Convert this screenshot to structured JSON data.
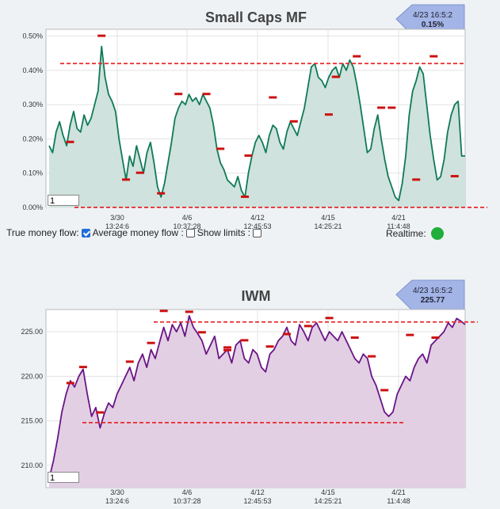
{
  "chart_data": [
    {
      "type": "line",
      "title": "Small Caps MF",
      "badge": {
        "time": "4/23 16:5:2",
        "value": "0.15%"
      },
      "y_ticks": [
        "0.00%",
        "0.10%",
        "0.20%",
        "0.30%",
        "0.40%",
        "0.50%"
      ],
      "ylim": [
        0,
        0.52
      ],
      "x_ticks": [
        {
          "date": "3/30",
          "time": "13:24:6"
        },
        {
          "date": "4/6",
          "time": "10:37:28"
        },
        {
          "date": "4/12",
          "time": "12:45:53"
        },
        {
          "date": "4/15",
          "time": "14:25:21"
        },
        {
          "date": "4/21",
          "time": "11:4:48"
        }
      ],
      "limits": [
        0.42,
        0.0
      ],
      "zoom_value": "1",
      "colors": {
        "line": "#0f7a57",
        "fill": "#cfe2dd",
        "limit": "#e8282a",
        "marker": "#cc1111"
      },
      "values": [
        0.18,
        0.16,
        0.22,
        0.25,
        0.21,
        0.18,
        0.24,
        0.28,
        0.23,
        0.22,
        0.27,
        0.24,
        0.26,
        0.3,
        0.34,
        0.47,
        0.38,
        0.33,
        0.31,
        0.28,
        0.2,
        0.14,
        0.08,
        0.15,
        0.12,
        0.18,
        0.14,
        0.1,
        0.16,
        0.19,
        0.13,
        0.06,
        0.03,
        0.07,
        0.13,
        0.19,
        0.26,
        0.29,
        0.31,
        0.3,
        0.33,
        0.31,
        0.32,
        0.3,
        0.33,
        0.31,
        0.29,
        0.24,
        0.17,
        0.13,
        0.11,
        0.08,
        0.07,
        0.06,
        0.09,
        0.05,
        0.03,
        0.1,
        0.15,
        0.19,
        0.21,
        0.19,
        0.16,
        0.21,
        0.24,
        0.23,
        0.19,
        0.17,
        0.22,
        0.25,
        0.23,
        0.21,
        0.25,
        0.29,
        0.35,
        0.41,
        0.42,
        0.38,
        0.37,
        0.35,
        0.38,
        0.4,
        0.41,
        0.38,
        0.42,
        0.4,
        0.43,
        0.41,
        0.36,
        0.3,
        0.23,
        0.16,
        0.17,
        0.23,
        0.27,
        0.2,
        0.14,
        0.09,
        0.06,
        0.03,
        0.02,
        0.07,
        0.15,
        0.27,
        0.34,
        0.37,
        0.41,
        0.39,
        0.3,
        0.21,
        0.14,
        0.08,
        0.09,
        0.14,
        0.22,
        0.27,
        0.3,
        0.31,
        0.15,
        0.15
      ],
      "markers": [
        {
          "i": 6,
          "v": 0.19
        },
        {
          "i": 15,
          "v": 0.5
        },
        {
          "i": 22,
          "v": 0.08
        },
        {
          "i": 26,
          "v": 0.1
        },
        {
          "i": 32,
          "v": 0.04
        },
        {
          "i": 37,
          "v": 0.33
        },
        {
          "i": 45,
          "v": 0.33
        },
        {
          "i": 49,
          "v": 0.17
        },
        {
          "i": 56,
          "v": 0.03
        },
        {
          "i": 57,
          "v": 0.15
        },
        {
          "i": 64,
          "v": 0.32
        },
        {
          "i": 70,
          "v": 0.25
        },
        {
          "i": 80,
          "v": 0.27
        },
        {
          "i": 82,
          "v": 0.38
        },
        {
          "i": 88,
          "v": 0.44
        },
        {
          "i": 95,
          "v": 0.29
        },
        {
          "i": 98,
          "v": 0.29
        },
        {
          "i": 105,
          "v": 0.08
        },
        {
          "i": 110,
          "v": 0.44
        },
        {
          "i": 116,
          "v": 0.09
        }
      ]
    },
    {
      "type": "line",
      "title": "IWM",
      "badge": {
        "time": "4/23 16:5:2",
        "value": "225.77"
      },
      "y_ticks": [
        "210.00",
        "215.00",
        "220.00",
        "225.00"
      ],
      "ylim": [
        207.5,
        227.5
      ],
      "x_ticks": [
        {
          "date": "3/30",
          "time": "13:24:6"
        },
        {
          "date": "4/6",
          "time": "10:37:28"
        },
        {
          "date": "4/12",
          "time": "12:45:53"
        },
        {
          "date": "4/15",
          "time": "14:25:21"
        },
        {
          "date": "4/21",
          "time": "11:4:48"
        }
      ],
      "limits": [
        226.1,
        214.8
      ],
      "zoom_value": "1",
      "colors": {
        "line": "#6a1486",
        "fill": "#e2cfe3",
        "limit": "#e8282a",
        "marker": "#cc1111"
      },
      "values": [
        208.5,
        210.5,
        213.0,
        216.0,
        218.0,
        219.5,
        218.8,
        220.0,
        220.8,
        218.0,
        215.5,
        216.5,
        214.2,
        215.8,
        217.0,
        216.5,
        218.0,
        219.0,
        220.0,
        221.0,
        219.5,
        221.5,
        222.5,
        221.0,
        223.0,
        222.0,
        223.8,
        225.5,
        224.0,
        225.8,
        225.0,
        226.0,
        224.5,
        226.8,
        225.5,
        224.8,
        224.0,
        222.5,
        223.5,
        224.5,
        222.0,
        222.5,
        223.0,
        221.5,
        223.5,
        224.0,
        222.0,
        221.5,
        223.0,
        222.5,
        221.0,
        220.5,
        222.5,
        223.0,
        224.0,
        224.5,
        225.5,
        224.0,
        223.5,
        225.8,
        225.0,
        224.0,
        225.5,
        226.0,
        225.0,
        224.0,
        225.0,
        224.5,
        224.0,
        225.0,
        224.0,
        223.0,
        222.0,
        221.5,
        222.5,
        222.0,
        220.0,
        219.0,
        217.5,
        216.0,
        215.5,
        216.0,
        218.0,
        219.0,
        220.0,
        219.5,
        221.0,
        222.0,
        222.5,
        221.5,
        223.5,
        224.0,
        224.5,
        225.0,
        226.0,
        225.5,
        226.5,
        226.2,
        225.8
      ],
      "markers": [
        {
          "i": 5,
          "v": 219.2
        },
        {
          "i": 8,
          "v": 221.0
        },
        {
          "i": 12,
          "v": 215.9
        },
        {
          "i": 19,
          "v": 221.6
        },
        {
          "i": 24,
          "v": 223.7
        },
        {
          "i": 27,
          "v": 227.3
        },
        {
          "i": 33,
          "v": 227.2
        },
        {
          "i": 36,
          "v": 224.9
        },
        {
          "i": 42,
          "v": 223.2
        },
        {
          "i": 42,
          "v": 222.9
        },
        {
          "i": 46,
          "v": 224.0
        },
        {
          "i": 52,
          "v": 223.3
        },
        {
          "i": 56,
          "v": 224.7
        },
        {
          "i": 61,
          "v": 225.6
        },
        {
          "i": 66,
          "v": 226.5
        },
        {
          "i": 72,
          "v": 224.3
        },
        {
          "i": 76,
          "v": 222.2
        },
        {
          "i": 79,
          "v": 218.4
        },
        {
          "i": 85,
          "v": 224.6
        },
        {
          "i": 91,
          "v": 224.3
        }
      ]
    }
  ],
  "controls": {
    "true_money_flow_label": "True money flow:",
    "true_money_flow_checked": true,
    "average_money_flow_label": "Average money flow :",
    "average_money_flow_checked": false,
    "show_limits_label": "Show limits :",
    "show_limits_checked": false,
    "realtime_label": "Realtime:",
    "realtime_color": "#1fae3a"
  }
}
